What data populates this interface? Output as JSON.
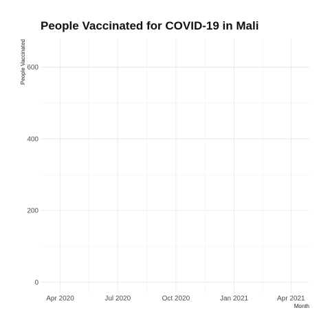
{
  "chart_data": {
    "type": "line",
    "title": "People Vaccinated for COVID-19 in Mali",
    "xlabel": "Month",
    "ylabel": "People Vaccinated",
    "x_axis": {
      "kind": "date",
      "range": [
        "2020-03-01",
        "2021-04-30"
      ],
      "ticks": [
        {
          "value": "2020-04-01",
          "label": "Apr 2020"
        },
        {
          "value": "2020-07-01",
          "label": "Jul 2020"
        },
        {
          "value": "2020-10-01",
          "label": "Oct 2020"
        },
        {
          "value": "2021-01-01",
          "label": "Jan 2021"
        },
        {
          "value": "2021-04-01",
          "label": "Apr 2021"
        }
      ],
      "minor_ticks": [
        "2020-05-16",
        "2020-08-16",
        "2020-11-16",
        "2021-02-15"
      ]
    },
    "y_axis": {
      "range": [
        -30,
        680
      ],
      "ticks": [
        {
          "value": 0,
          "label": "0"
        },
        {
          "value": 200,
          "label": "200"
        },
        {
          "value": 400,
          "label": "400"
        },
        {
          "value": 600,
          "label": "600"
        }
      ],
      "minor_ticks": [
        100,
        300,
        500
      ]
    },
    "grid": true,
    "legend": "none",
    "series": [
      {
        "values": []
      }
    ]
  }
}
